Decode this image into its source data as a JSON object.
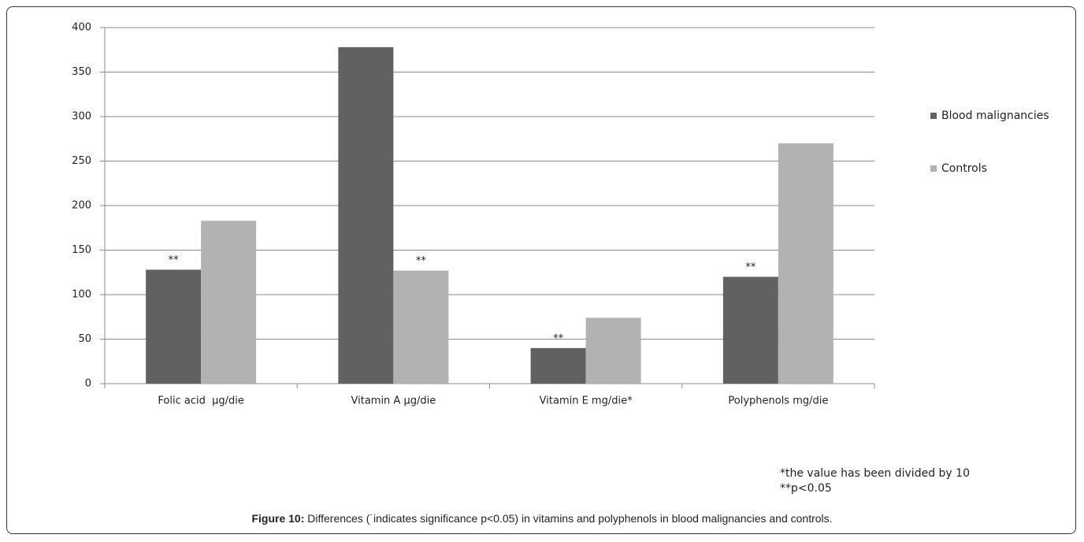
{
  "chart_data": {
    "type": "bar",
    "categories": [
      "Folic acid  µg/die",
      "Vitamin A µg/die",
      "Vitamin E mg/die*",
      "Polyphenols mg/die"
    ],
    "series": [
      {
        "name": "Blood malignancies",
        "color": "#616161",
        "values": [
          128,
          378,
          40,
          120
        ],
        "annotations": [
          "**",
          null,
          "**",
          "**"
        ]
      },
      {
        "name": "Controls",
        "color": "#b2b2b2",
        "values": [
          183,
          127,
          74,
          270
        ],
        "annotations": [
          null,
          "**",
          null,
          null
        ]
      }
    ],
    "ylim": [
      0,
      400
    ],
    "yticks": [
      0,
      50,
      100,
      150,
      200,
      250,
      300,
      350,
      400
    ],
    "grid": true,
    "legend": "right",
    "footnotes": [
      "*the value has been divided by 10",
      "**p<0.05"
    ],
    "caption_label": "Figure 10:",
    "caption": "Differences (˙indicates significance p<0.05) in vitamins and polyphenols in blood malignancies and controls."
  }
}
